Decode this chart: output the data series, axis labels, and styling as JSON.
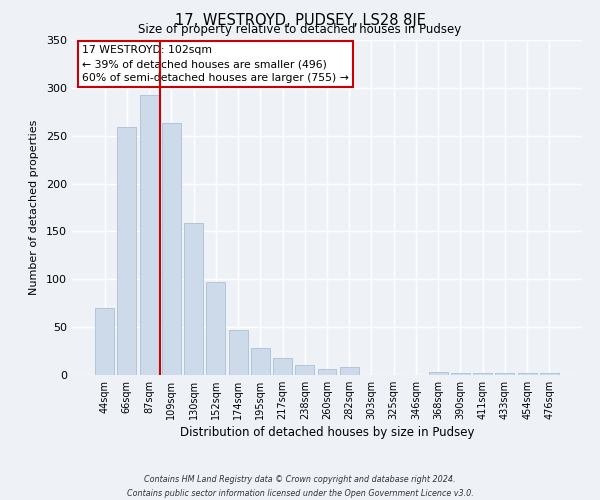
{
  "title": "17, WESTROYD, PUDSEY, LS28 8JE",
  "subtitle": "Size of property relative to detached houses in Pudsey",
  "xlabel": "Distribution of detached houses by size in Pudsey",
  "ylabel": "Number of detached properties",
  "bar_labels": [
    "44sqm",
    "66sqm",
    "87sqm",
    "109sqm",
    "130sqm",
    "152sqm",
    "174sqm",
    "195sqm",
    "217sqm",
    "238sqm",
    "260sqm",
    "282sqm",
    "303sqm",
    "325sqm",
    "346sqm",
    "368sqm",
    "390sqm",
    "411sqm",
    "433sqm",
    "454sqm",
    "476sqm"
  ],
  "bar_values": [
    70,
    259,
    293,
    263,
    159,
    97,
    47,
    28,
    18,
    10,
    6,
    8,
    0,
    0,
    0,
    3,
    2,
    2,
    2,
    2,
    2
  ],
  "bar_color": "#ccdaea",
  "bar_edge_color": "#aac0d8",
  "vline_x": 2.5,
  "vline_color": "#cc0000",
  "ylim": [
    0,
    350
  ],
  "yticks": [
    0,
    50,
    100,
    150,
    200,
    250,
    300,
    350
  ],
  "annotation_text": "17 WESTROYD: 102sqm\n← 39% of detached houses are smaller (496)\n60% of semi-detached houses are larger (755) →",
  "annotation_box_color": "#ffffff",
  "annotation_box_edge": "#cc0000",
  "footer_line1": "Contains HM Land Registry data © Crown copyright and database right 2024.",
  "footer_line2": "Contains public sector information licensed under the Open Government Licence v3.0.",
  "background_color": "#eef2f7",
  "grid_color": "#ffffff"
}
